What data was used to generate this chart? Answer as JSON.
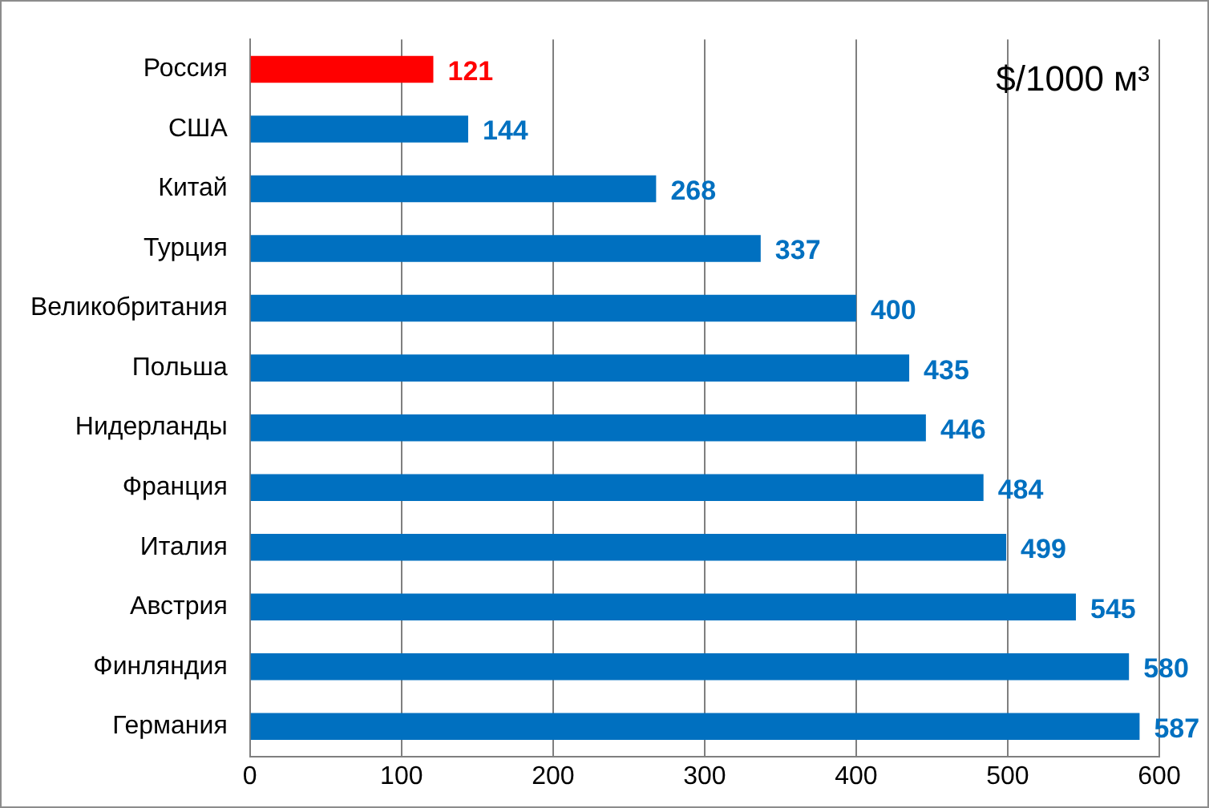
{
  "chart_data": {
    "type": "bar",
    "orientation": "horizontal",
    "categories": [
      "Россия",
      "США",
      "Китай",
      "Турция",
      "Великобритания",
      "Польша",
      "Нидерланды",
      "Франция",
      "Италия",
      "Австрия",
      "Финляндия",
      "Германия"
    ],
    "values": [
      121,
      144,
      268,
      337,
      400,
      435,
      446,
      484,
      499,
      545,
      580,
      587
    ],
    "colors": [
      "#ff0000",
      "#0070c0",
      "#0070c0",
      "#0070c0",
      "#0070c0",
      "#0070c0",
      "#0070c0",
      "#0070c0",
      "#0070c0",
      "#0070c0",
      "#0070c0",
      "#0070c0"
    ],
    "xlim": [
      0,
      600
    ],
    "xticks": [
      0,
      100,
      200,
      300,
      400,
      500,
      600
    ],
    "grid": "x",
    "data_labels": true,
    "legend": false,
    "annotations": [
      "$/1000 м³"
    ]
  }
}
